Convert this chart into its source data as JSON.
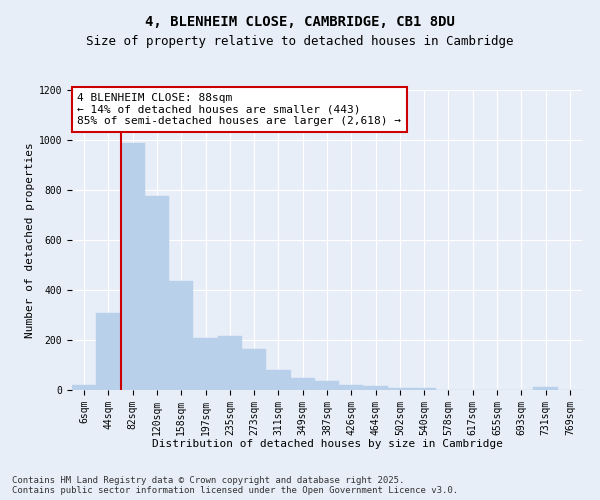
{
  "title_line1": "4, BLENHEIM CLOSE, CAMBRIDGE, CB1 8DU",
  "title_line2": "Size of property relative to detached houses in Cambridge",
  "xlabel": "Distribution of detached houses by size in Cambridge",
  "ylabel": "Number of detached properties",
  "categories": [
    "6sqm",
    "44sqm",
    "82sqm",
    "120sqm",
    "158sqm",
    "197sqm",
    "235sqm",
    "273sqm",
    "311sqm",
    "349sqm",
    "387sqm",
    "426sqm",
    "464sqm",
    "502sqm",
    "540sqm",
    "578sqm",
    "617sqm",
    "655sqm",
    "693sqm",
    "731sqm",
    "769sqm"
  ],
  "values": [
    22,
    308,
    990,
    775,
    435,
    210,
    215,
    165,
    80,
    50,
    35,
    20,
    17,
    10,
    8,
    0,
    0,
    0,
    0,
    12,
    0
  ],
  "bar_color": "#b8d0ea",
  "bar_edge_color": "#b8d0ea",
  "vline_bar_index": 2,
  "vline_color": "#cc0000",
  "annotation_text": "4 BLENHEIM CLOSE: 88sqm\n← 14% of detached houses are smaller (443)\n85% of semi-detached houses are larger (2,618) →",
  "annotation_box_facecolor": "#ffffff",
  "annotation_box_edgecolor": "#cc0000",
  "ylim": [
    0,
    1200
  ],
  "yticks": [
    0,
    200,
    400,
    600,
    800,
    1000,
    1200
  ],
  "bg_color": "#e8eef8",
  "plot_bg_color": "#e8eef8",
  "footer_line1": "Contains HM Land Registry data © Crown copyright and database right 2025.",
  "footer_line2": "Contains public sector information licensed under the Open Government Licence v3.0.",
  "grid_color": "#ffffff",
  "title_fontsize": 10,
  "subtitle_fontsize": 9,
  "axis_label_fontsize": 8,
  "tick_fontsize": 7,
  "annotation_fontsize": 8,
  "footer_fontsize": 6.5
}
